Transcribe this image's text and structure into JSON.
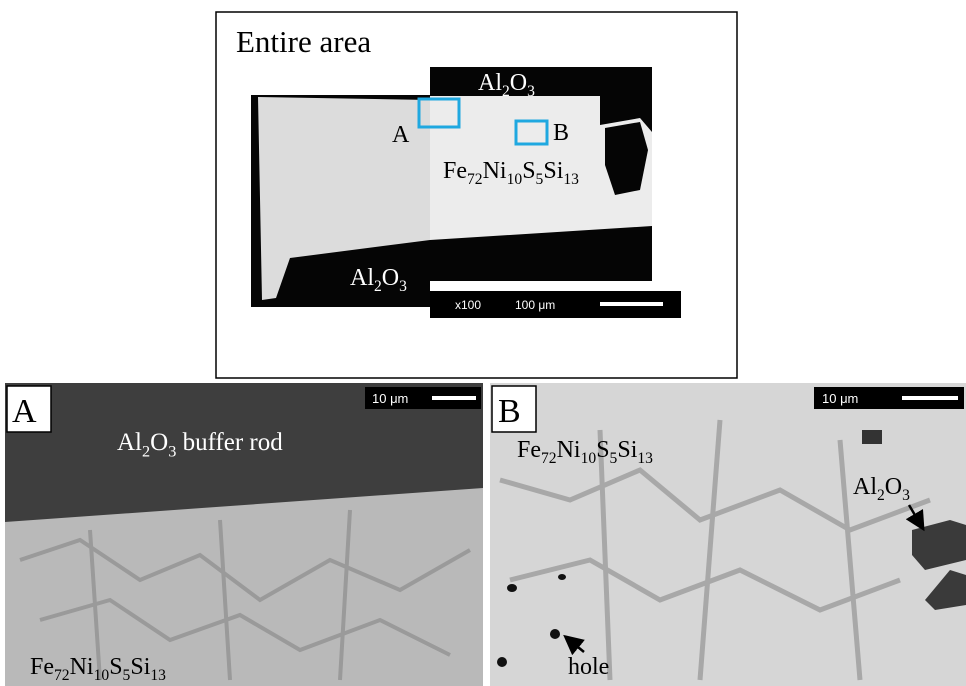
{
  "overview": {
    "title": "Entire area",
    "top_material": [
      "Al",
      "2",
      "O",
      "3"
    ],
    "bottom_material": [
      "Al",
      "2",
      "O",
      "3"
    ],
    "alloy": [
      "Fe",
      "72",
      "Ni",
      "10",
      "S",
      "5",
      "Si",
      "13"
    ],
    "region_a": "A",
    "region_b": "B",
    "magnification": "x100",
    "scale_bar": "100 μm"
  },
  "panel_a": {
    "label": "A",
    "scale_bar": "10 μm",
    "top_material": [
      "Al",
      "2",
      "O",
      "3",
      " buffer rod"
    ],
    "alloy": [
      "Fe",
      "72",
      "Ni",
      "10",
      "S",
      "5",
      "Si",
      "13"
    ]
  },
  "panel_b": {
    "label": "B",
    "scale_bar": "10 μm",
    "alloy": [
      "Fe",
      "72",
      "Ni",
      "10",
      "S",
      "5",
      "Si",
      "13"
    ],
    "inclusion": [
      "Al",
      "2",
      "O",
      "3"
    ],
    "hole": "hole"
  }
}
